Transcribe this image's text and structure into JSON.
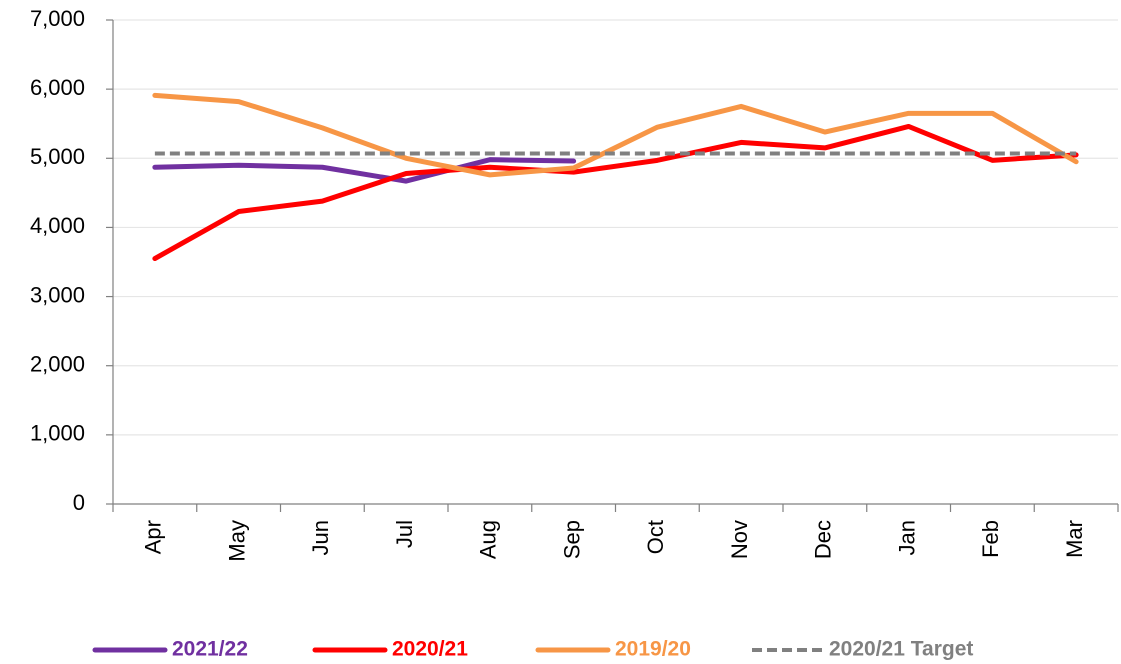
{
  "chart_data": {
    "type": "line",
    "categories": [
      "Apr",
      "May",
      "Jun",
      "Jul",
      "Aug",
      "Sep",
      "Oct",
      "Nov",
      "Dec",
      "Jan",
      "Feb",
      "Mar"
    ],
    "series": [
      {
        "name": "2021/22",
        "color": "#7030a0",
        "values": [
          4870,
          4900,
          4870,
          4670,
          4980,
          4960,
          null,
          null,
          null,
          null,
          null,
          null
        ]
      },
      {
        "name": "2020/21",
        "color": "#ff0000",
        "values": [
          3550,
          4230,
          4380,
          4780,
          4870,
          4800,
          4970,
          5230,
          5150,
          5460,
          4970,
          5050
        ]
      },
      {
        "name": "2019/20",
        "color": "#f79646",
        "values": [
          5910,
          5820,
          5440,
          5000,
          4760,
          4860,
          5450,
          5750,
          5380,
          5650,
          5650,
          4950
        ]
      },
      {
        "name": "2020/21 Target",
        "color": "#808080",
        "dashed": true,
        "values": [
          5070,
          5070,
          5070,
          5070,
          5070,
          5070,
          5070,
          5070,
          5070,
          5070,
          5070,
          5070
        ]
      }
    ],
    "ylim": [
      0,
      7000
    ],
    "yticks": [
      0,
      {
        "value": 1000,
        "label": "1,000"
      },
      {
        "value": 2000,
        "label": "2,000"
      },
      {
        "value": 3000,
        "label": "3,000"
      },
      {
        "value": 4000,
        "label": "4,000"
      },
      {
        "value": 5000,
        "label": "5,000"
      },
      {
        "value": 6000,
        "label": "6,000"
      },
      {
        "value": 7000,
        "label": "7,000"
      }
    ],
    "grid": true,
    "legend": "bottom"
  }
}
